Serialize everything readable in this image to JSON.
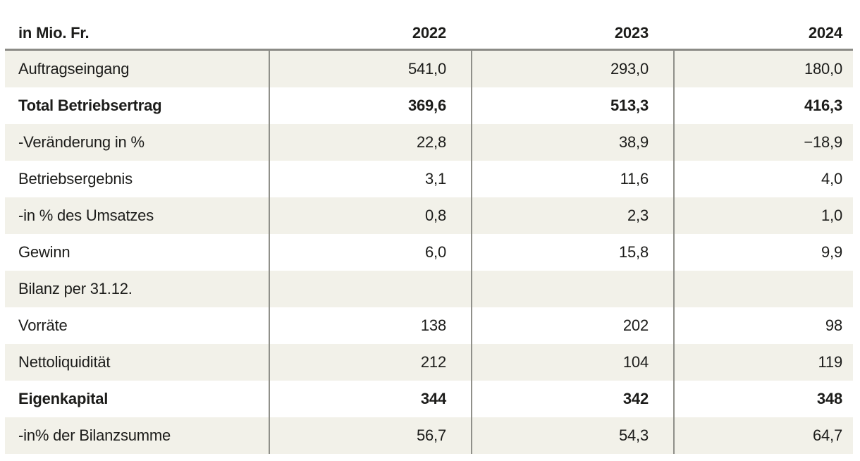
{
  "table": {
    "unit_label": "in Mio. Fr.",
    "columns": [
      "2022",
      "2023",
      "2024"
    ],
    "rows": [
      {
        "label": "Auftragseingang",
        "values": [
          "541,0",
          "293,0",
          "180,0"
        ],
        "bold": false
      },
      {
        "label": "Total Betriebsertrag",
        "values": [
          "369,6",
          "513,3",
          "416,3"
        ],
        "bold": true
      },
      {
        "label": "-Veränderung in %",
        "values": [
          "22,8",
          "38,9",
          "−18,9"
        ],
        "bold": false
      },
      {
        "label": "Betriebsergebnis",
        "values": [
          "3,1",
          "11,6",
          "4,0"
        ],
        "bold": false
      },
      {
        "label": "-in % des Umsatzes",
        "values": [
          "0,8",
          "2,3",
          "1,0"
        ],
        "bold": false
      },
      {
        "label": "Gewinn",
        "values": [
          "6,0",
          "15,8",
          "9,9"
        ],
        "bold": false
      },
      {
        "label": "Bilanz per 31.12.",
        "values": [
          "",
          "",
          ""
        ],
        "bold": false
      },
      {
        "label": "Vorräte",
        "values": [
          "138",
          "202",
          "98"
        ],
        "bold": false
      },
      {
        "label": "Nettoliquidität",
        "values": [
          "212",
          "104",
          "119"
        ],
        "bold": false
      },
      {
        "label": "Eigenkapital",
        "values": [
          "344",
          "342",
          "348"
        ],
        "bold": true
      },
      {
        "label": "-in% der Bilanzsumme",
        "values": [
          "56,7",
          "54,3",
          "64,7"
        ],
        "bold": false
      }
    ]
  },
  "chart_data": {
    "type": "table",
    "title": "in Mio. Fr.",
    "categories": [
      "2022",
      "2023",
      "2024"
    ],
    "series": [
      {
        "name": "Auftragseingang",
        "values": [
          541.0,
          293.0,
          180.0
        ]
      },
      {
        "name": "Total Betriebsertrag",
        "values": [
          369.6,
          513.3,
          416.3
        ]
      },
      {
        "name": "-Veränderung in %",
        "values": [
          22.8,
          38.9,
          -18.9
        ]
      },
      {
        "name": "Betriebsergebnis",
        "values": [
          3.1,
          11.6,
          4.0
        ]
      },
      {
        "name": "-in % des Umsatzes",
        "values": [
          0.8,
          2.3,
          1.0
        ]
      },
      {
        "name": "Gewinn",
        "values": [
          6.0,
          15.8,
          9.9
        ]
      },
      {
        "name": "Bilanz per 31.12.",
        "values": [
          null,
          null,
          null
        ]
      },
      {
        "name": "Vorräte",
        "values": [
          138,
          202,
          98
        ]
      },
      {
        "name": "Nettoliquidität",
        "values": [
          212,
          104,
          119
        ]
      },
      {
        "name": "Eigenkapital",
        "values": [
          344,
          342,
          348
        ]
      },
      {
        "name": "-in% der Bilanzsumme",
        "values": [
          56.7,
          54.3,
          64.7
        ]
      }
    ]
  },
  "colors": {
    "row_alt_bg": "#f2f1e9",
    "column_divider": "#90908a",
    "header_rule": "#8b8b86",
    "text": "#1c1c1a"
  }
}
